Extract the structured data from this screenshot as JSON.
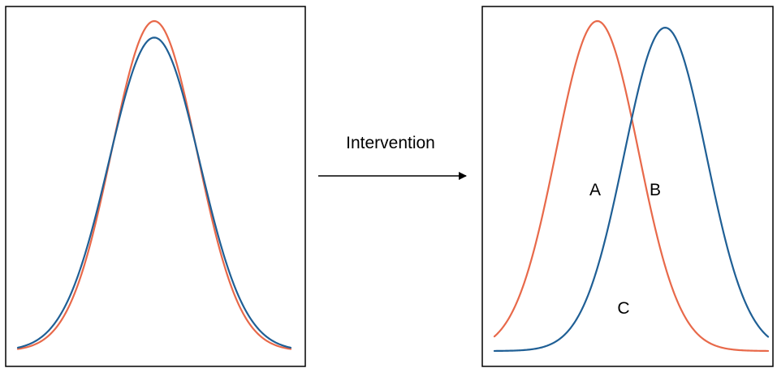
{
  "arrow": {
    "label": "Intervention"
  },
  "after_panel": {
    "labels": {
      "a": "A",
      "b": "B",
      "c": "C"
    }
  },
  "colors": {
    "orange_curve": "#E8694A",
    "blue_curve": "#1F5F95",
    "frame": "#000000"
  },
  "chart_data": [
    {
      "type": "line",
      "title": "",
      "series": [
        {
          "color": "#E8694A",
          "mean": 0,
          "sd": 1,
          "peak": 1.0
        },
        {
          "color": "#1F5F95",
          "mean": 0,
          "sd": 1.06,
          "peak": 0.95
        }
      ],
      "grid": false,
      "axes_visible": false
    },
    {
      "type": "line",
      "title": "",
      "series": [
        {
          "color": "#E8694A",
          "mean": 0,
          "sd": 1,
          "peak": 1.0
        },
        {
          "color": "#1F5F95",
          "mean": 1.65,
          "sd": 1,
          "peak": 0.98
        }
      ],
      "grid": false,
      "axes_visible": false
    }
  ]
}
